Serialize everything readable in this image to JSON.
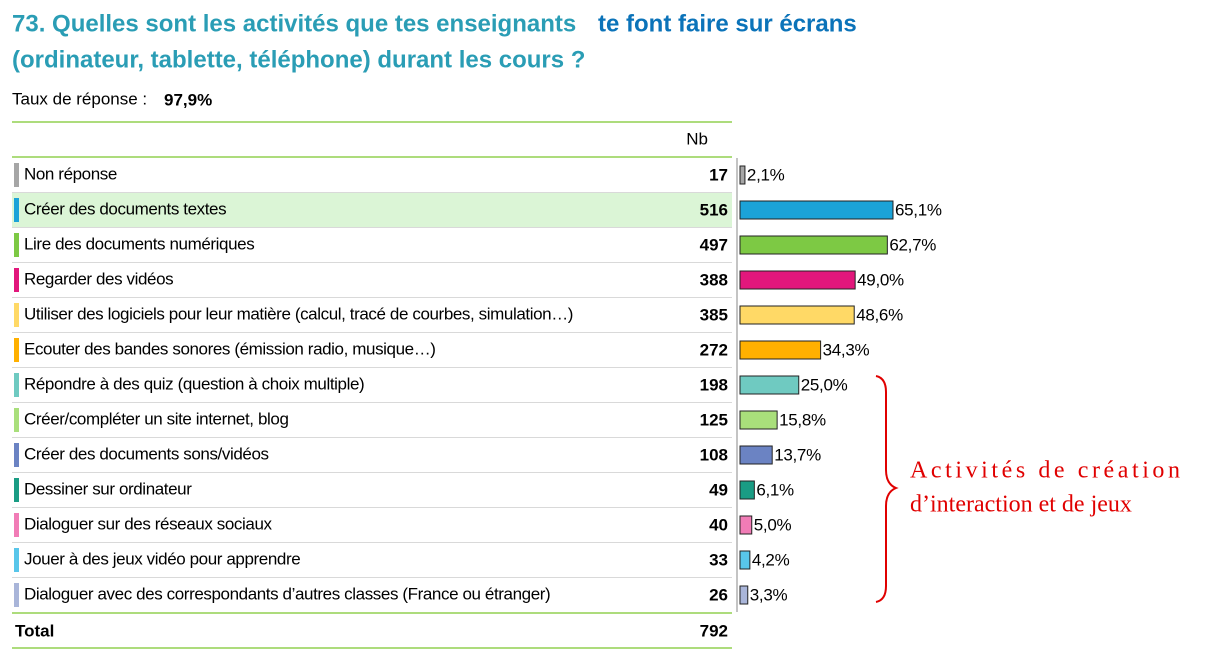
{
  "chart_data": {
    "type": "bar",
    "title": [
      "73. Quelles sont les activités que tes enseignants",
      "te font faire sur écrans",
      "(ordinateur, tablette, téléphone) durant les cours ?"
    ],
    "subtitle": "Taux de réponse :",
    "response_rate": {
      "value": 97.9,
      "label": "97,9%"
    },
    "count_header": "Nb",
    "categories": [
      "Non réponse",
      "Créer des documents textes",
      "Lire des documents numériques",
      "Regarder des vidéos",
      "Utiliser des logiciels pour leur matière (calcul, tracé de courbes, simulation…)",
      "Ecouter des bandes sonores (émission radio, musique…)",
      "Répondre à des quiz (question à choix multiple)",
      "Créer/compléter un site internet, blog",
      "Créer des documents sons/vidéos",
      "Dessiner sur ordinateur",
      "Dialoguer sur des réseaux sociaux",
      "Jouer à des jeux vidéo pour apprendre",
      "Dialoguer avec des correspondants d’autres classes (France ou étranger)"
    ],
    "counts": [
      17,
      516,
      497,
      388,
      385,
      272,
      198,
      125,
      108,
      49,
      40,
      33,
      26
    ],
    "values": [
      2.1,
      65.1,
      62.7,
      49.0,
      48.6,
      34.3,
      25.0,
      15.8,
      13.7,
      6.1,
      5.0,
      4.2,
      3.3
    ],
    "value_labels": [
      "2,1%",
      "65,1%",
      "62,7%",
      "49,0%",
      "48,6%",
      "34,3%",
      "25,0%",
      "15,8%",
      "13,7%",
      "6,1%",
      "5,0%",
      "4,2%",
      "3,3%"
    ],
    "colors": [
      "#a6a6a6",
      "#1ba3d8",
      "#7dc944",
      "#e2177c",
      "#ffd966",
      "#ffb000",
      "#6fcac1",
      "#a9df7b",
      "#6b83c3",
      "#1a9c84",
      "#f17cb6",
      "#58c6ea",
      "#a9b5d9"
    ],
    "highlight": 1,
    "total_label": "Total",
    "total": 792,
    "annotation": [
      "Activités de création",
      "d’interaction et de jeux"
    ]
  }
}
